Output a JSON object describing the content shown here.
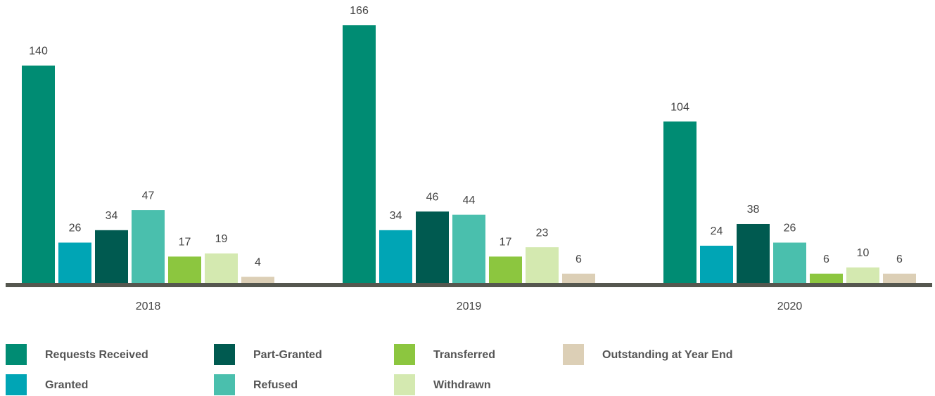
{
  "chart_data": {
    "type": "bar",
    "categories": [
      "2018",
      "2019",
      "2020"
    ],
    "series": [
      {
        "name": "Requests Received",
        "color": "#008c73",
        "values": [
          140,
          166,
          104
        ]
      },
      {
        "name": "Granted",
        "color": "#00a5b5",
        "values": [
          26,
          34,
          24
        ]
      },
      {
        "name": "Part-Granted",
        "color": "#005a50",
        "values": [
          34,
          46,
          38
        ]
      },
      {
        "name": "Refused",
        "color": "#4abfad",
        "values": [
          47,
          44,
          26
        ]
      },
      {
        "name": "Transferred",
        "color": "#8cc63f",
        "values": [
          17,
          17,
          6
        ]
      },
      {
        "name": "Withdrawn",
        "color": "#d4e9b0",
        "values": [
          19,
          23,
          10
        ]
      },
      {
        "name": "Outstanding at Year End",
        "color": "#dccfb6",
        "values": [
          4,
          6,
          6
        ]
      }
    ],
    "legend": "bottom"
  }
}
